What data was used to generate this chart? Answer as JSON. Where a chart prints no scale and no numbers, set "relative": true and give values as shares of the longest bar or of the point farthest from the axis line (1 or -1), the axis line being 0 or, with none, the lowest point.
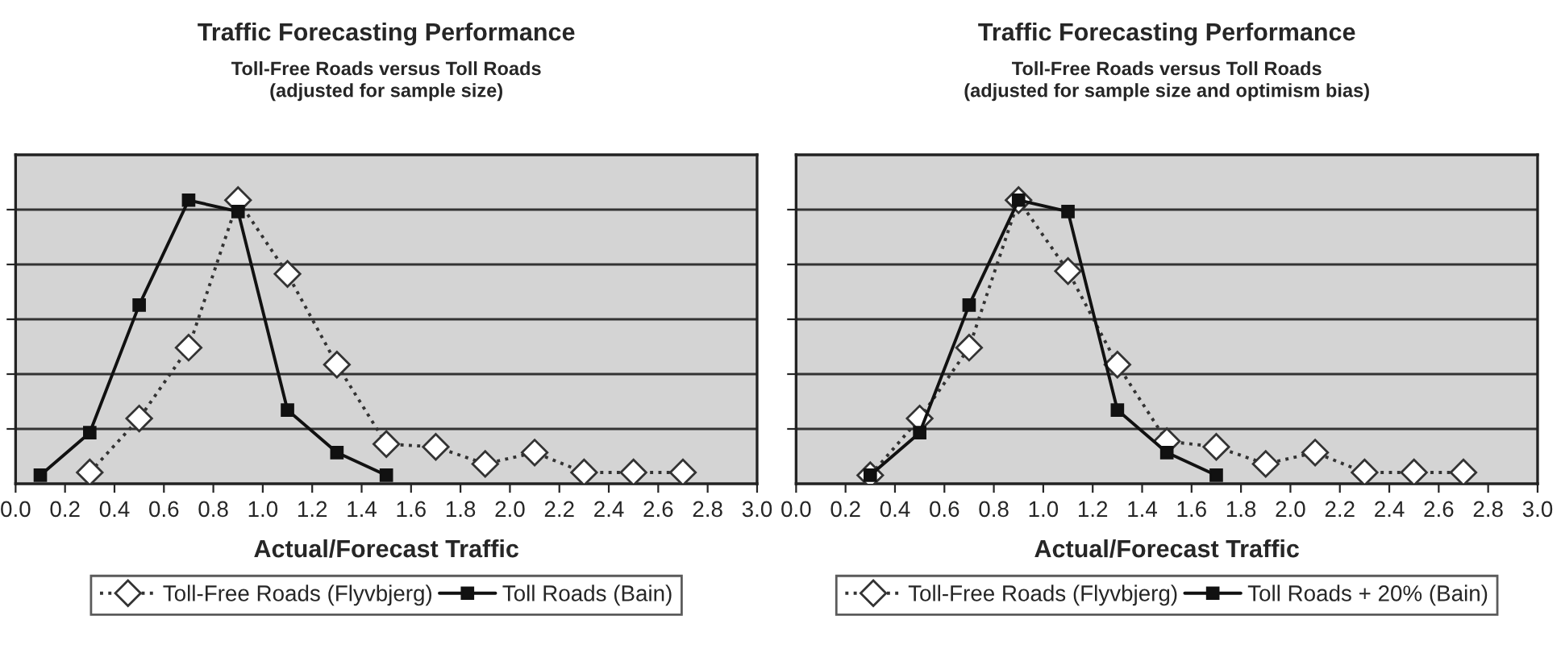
{
  "chart_data": [
    {
      "type": "line",
      "title": "Traffic Forecasting Performance",
      "subtitle": "Toll-Free Roads versus Toll Roads\n(adjusted for sample size)",
      "xlabel": "Actual/Forecast Traffic",
      "relative": true,
      "grid": "y",
      "legend": "bottom",
      "xlim": [
        0,
        3
      ],
      "xticks": [
        {
          "value": 0,
          "label": "0.0"
        },
        {
          "value": 0.2,
          "label": "0.2"
        },
        {
          "value": 0.4,
          "label": "0.4"
        },
        {
          "value": 0.6,
          "label": "0.6"
        },
        {
          "value": 0.8,
          "label": "0.8"
        },
        {
          "value": 1,
          "label": "1.0"
        },
        {
          "value": 1.2,
          "label": "1.2"
        },
        {
          "value": 1.4,
          "label": "1.4"
        },
        {
          "value": 1.6,
          "label": "1.6"
        },
        {
          "value": 1.8,
          "label": "1.8"
        },
        {
          "value": 2,
          "label": "2.0"
        },
        {
          "value": 2.2,
          "label": "2.2"
        },
        {
          "value": 2.4,
          "label": "2.4"
        },
        {
          "value": 2.6,
          "label": "2.6"
        },
        {
          "value": 2.8,
          "label": "2.8"
        },
        {
          "value": 3,
          "label": "3.0"
        }
      ],
      "series": [
        {
          "name": "Toll-Free Roads (Flyvbjerg)",
          "color": "#333333",
          "marker": "diamond",
          "line_style": "dotted",
          "x": [
            0.3,
            0.5,
            0.7,
            0.9,
            1.1,
            1.3,
            1.5,
            1.7,
            1.9,
            2.1,
            2.3,
            2.5,
            2.7
          ],
          "values": [
            0.04,
            0.23,
            0.48,
            1.0,
            0.74,
            0.42,
            0.14,
            0.13,
            0.07,
            0.11,
            0.04,
            0.04,
            0.04
          ]
        },
        {
          "name": "Toll Roads (Bain)",
          "color": "#111111",
          "marker": "square",
          "line_style": "solid",
          "x": [
            0.1,
            0.3,
            0.5,
            0.7,
            0.9,
            1.1,
            1.3,
            1.5
          ],
          "values": [
            0.03,
            0.18,
            0.63,
            1.0,
            0.96,
            0.26,
            0.11,
            0.03
          ]
        }
      ]
    },
    {
      "type": "line",
      "title": "Traffic Forecasting Performance",
      "subtitle": "Toll-Free Roads versus Toll Roads\n(adjusted for sample size and optimism bias)",
      "xlabel": "Actual/Forecast Traffic",
      "relative": true,
      "grid": "y",
      "legend": "bottom",
      "xlim": [
        0,
        3
      ],
      "xticks": [
        {
          "value": 0,
          "label": "0.0"
        },
        {
          "value": 0.2,
          "label": "0.2"
        },
        {
          "value": 0.4,
          "label": "0.4"
        },
        {
          "value": 0.6,
          "label": "0.6"
        },
        {
          "value": 0.8,
          "label": "0.8"
        },
        {
          "value": 1,
          "label": "1.0"
        },
        {
          "value": 1.2,
          "label": "1.2"
        },
        {
          "value": 1.4,
          "label": "1.4"
        },
        {
          "value": 1.6,
          "label": "1.6"
        },
        {
          "value": 1.8,
          "label": "1.8"
        },
        {
          "value": 2,
          "label": "2.0"
        },
        {
          "value": 2.2,
          "label": "2.2"
        },
        {
          "value": 2.4,
          "label": "2.4"
        },
        {
          "value": 2.6,
          "label": "2.6"
        },
        {
          "value": 2.8,
          "label": "2.8"
        },
        {
          "value": 3,
          "label": "3.0"
        }
      ],
      "series": [
        {
          "name": "Toll-Free Roads (Flyvbjerg)",
          "color": "#333333",
          "marker": "diamond",
          "line_style": "dotted",
          "x": [
            0.3,
            0.5,
            0.7,
            0.9,
            1.1,
            1.3,
            1.5,
            1.7,
            1.9,
            2.1,
            2.3,
            2.5,
            2.7
          ],
          "values": [
            0.03,
            0.23,
            0.48,
            1.0,
            0.75,
            0.42,
            0.15,
            0.13,
            0.07,
            0.11,
            0.04,
            0.04,
            0.04
          ]
        },
        {
          "name": "Toll Roads + 20% (Bain)",
          "color": "#111111",
          "marker": "square",
          "line_style": "solid",
          "x": [
            0.3,
            0.5,
            0.7,
            0.9,
            1.1,
            1.3,
            1.5,
            1.7
          ],
          "values": [
            0.03,
            0.18,
            0.63,
            1.0,
            0.96,
            0.26,
            0.11,
            0.03
          ]
        }
      ]
    }
  ]
}
